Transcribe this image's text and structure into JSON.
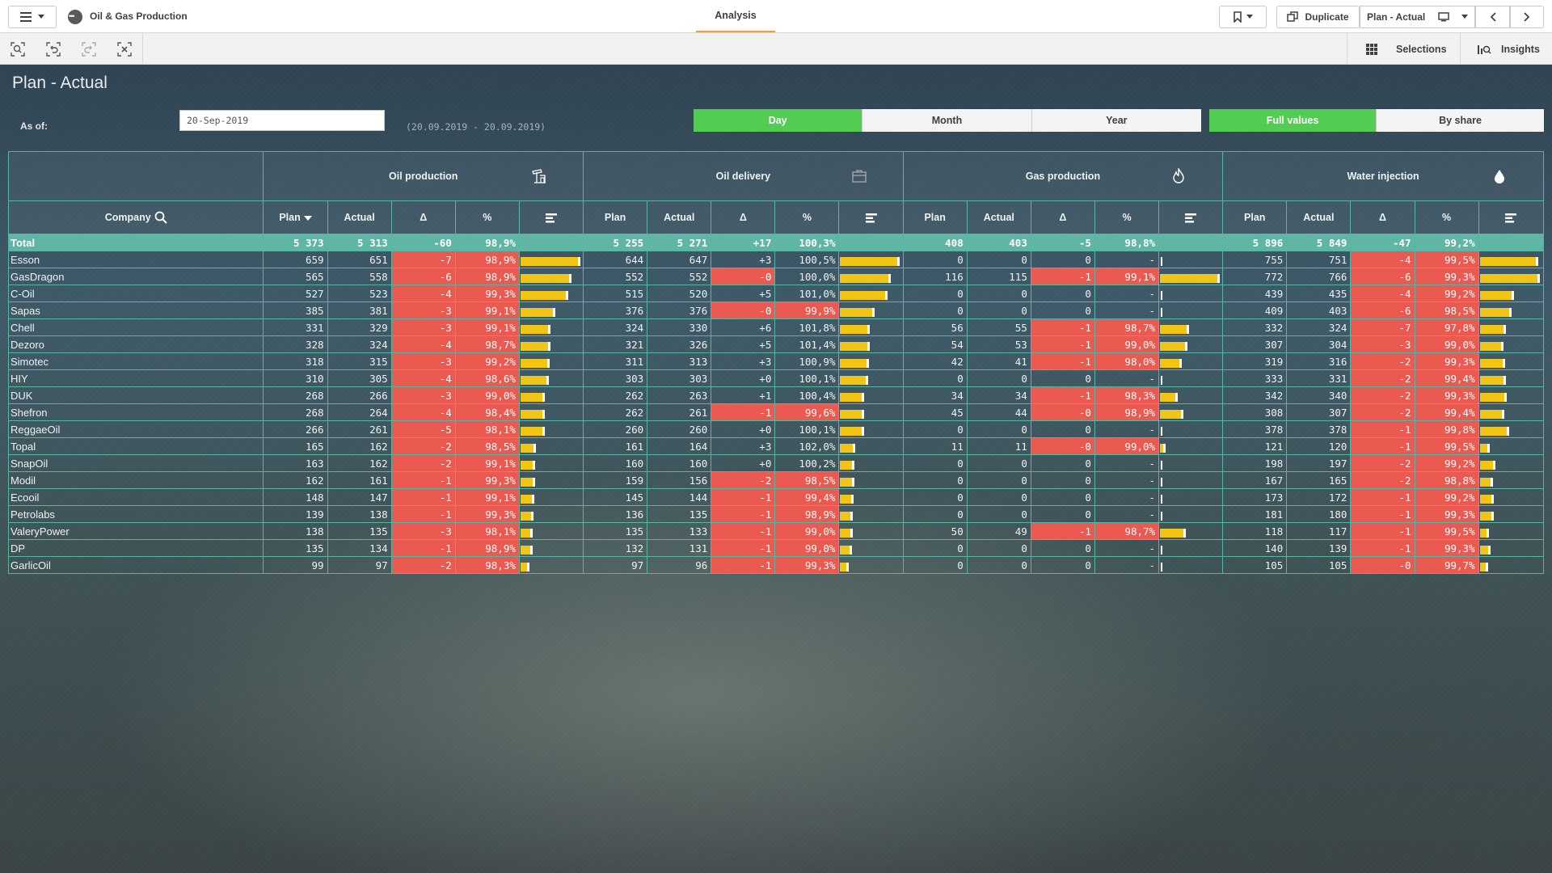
{
  "app": {
    "title": "Oil & Gas Production",
    "tab": "Analysis"
  },
  "header": {
    "duplicate": "Duplicate",
    "sheet": "Plan - Actual"
  },
  "toolbar": {
    "selections": "Selections",
    "insights": "Insights"
  },
  "sheet": {
    "title": "Plan - Actual",
    "as_of_label": "As of:",
    "date_value": "20-Sep-2019",
    "date_range": "(20.09.2019 - 20.09.2019)",
    "period_buttons": [
      {
        "label": "Day",
        "active": true
      },
      {
        "label": "Month",
        "active": false
      },
      {
        "label": "Year",
        "active": false
      }
    ],
    "mode_buttons": [
      {
        "label": "Full values",
        "active": true
      },
      {
        "label": "By share",
        "active": false
      }
    ]
  },
  "table": {
    "company_header": "Company",
    "groups": [
      {
        "label": "Oil production",
        "icon": "oil-pump-icon"
      },
      {
        "label": "Oil delivery",
        "icon": "delivery-icon"
      },
      {
        "label": "Gas production",
        "icon": "flame-icon"
      },
      {
        "label": "Water injection",
        "icon": "water-drop-icon"
      }
    ],
    "columns": [
      "Plan",
      "Actual",
      "Δ",
      "%",
      ""
    ],
    "colors": {
      "negative": "#ea5a50",
      "bar": "#f2c413",
      "total": "#5fb6a4",
      "active": "#52cc52"
    },
    "rows": [
      {
        "company": "Total",
        "total": true,
        "oil_prod": [
          "5 373",
          "5 313",
          "-60",
          "98,9%",
          null
        ],
        "oil_del": [
          "5 255",
          "5 271",
          "+17",
          "100,3%",
          null
        ],
        "gas": [
          "408",
          "403",
          "-5",
          "98,8%",
          null
        ],
        "water": [
          "5 896",
          "5 849",
          "-47",
          "99,2%",
          null
        ]
      },
      {
        "company": "Esson",
        "oil_prod": [
          "659",
          "651",
          "-7",
          "98,9%",
          659
        ],
        "oil_del": [
          "644",
          "647",
          "+3",
          "100,5%",
          644
        ],
        "gas": [
          "0",
          "0",
          "0",
          "-",
          0
        ],
        "water": [
          "755",
          "751",
          "-4",
          "99,5%",
          755
        ]
      },
      {
        "company": "GasDragon",
        "oil_prod": [
          "565",
          "558",
          "-6",
          "98,9%",
          565
        ],
        "oil_del": [
          "552",
          "552",
          "-0",
          "100,0%",
          552
        ],
        "gas": [
          "116",
          "115",
          "-1",
          "99,1%",
          116
        ],
        "water": [
          "772",
          "766",
          "-6",
          "99,3%",
          772
        ]
      },
      {
        "company": "C-Oil",
        "oil_prod": [
          "527",
          "523",
          "-4",
          "99,3%",
          527
        ],
        "oil_del": [
          "515",
          "520",
          "+5",
          "101,0%",
          515
        ],
        "gas": [
          "0",
          "0",
          "0",
          "-",
          0
        ],
        "water": [
          "439",
          "435",
          "-4",
          "99,2%",
          439
        ]
      },
      {
        "company": "Sapas",
        "oil_prod": [
          "385",
          "381",
          "-3",
          "99,1%",
          385
        ],
        "oil_del": [
          "376",
          "376",
          "-0",
          "99,9%",
          376
        ],
        "gas": [
          "0",
          "0",
          "0",
          "-",
          0
        ],
        "water": [
          "409",
          "403",
          "-6",
          "98,5%",
          409
        ]
      },
      {
        "company": "Chell",
        "oil_prod": [
          "331",
          "329",
          "-3",
          "99,1%",
          331
        ],
        "oil_del": [
          "324",
          "330",
          "+6",
          "101,8%",
          324
        ],
        "gas": [
          "56",
          "55",
          "-1",
          "98,7%",
          56
        ],
        "water": [
          "332",
          "324",
          "-7",
          "97,8%",
          332
        ]
      },
      {
        "company": "Dezoro",
        "oil_prod": [
          "328",
          "324",
          "-4",
          "98,7%",
          328
        ],
        "oil_del": [
          "321",
          "326",
          "+5",
          "101,4%",
          321
        ],
        "gas": [
          "54",
          "53",
          "-1",
          "99,0%",
          54
        ],
        "water": [
          "307",
          "304",
          "-3",
          "99,0%",
          307
        ]
      },
      {
        "company": "Simotec",
        "oil_prod": [
          "318",
          "315",
          "-3",
          "99,2%",
          318
        ],
        "oil_del": [
          "311",
          "313",
          "+3",
          "100,9%",
          311
        ],
        "gas": [
          "42",
          "41",
          "-1",
          "98,0%",
          42
        ],
        "water": [
          "319",
          "316",
          "-2",
          "99,3%",
          319
        ]
      },
      {
        "company": "HIY",
        "oil_prod": [
          "310",
          "305",
          "-4",
          "98,6%",
          310
        ],
        "oil_del": [
          "303",
          "303",
          "+0",
          "100,1%",
          303
        ],
        "gas": [
          "0",
          "0",
          "0",
          "-",
          0
        ],
        "water": [
          "333",
          "331",
          "-2",
          "99,4%",
          333
        ]
      },
      {
        "company": "DUK",
        "oil_prod": [
          "268",
          "266",
          "-3",
          "99,0%",
          268
        ],
        "oil_del": [
          "262",
          "263",
          "+1",
          "100,4%",
          262
        ],
        "gas": [
          "34",
          "34",
          "-1",
          "98,3%",
          34
        ],
        "water": [
          "342",
          "340",
          "-2",
          "99,3%",
          342
        ]
      },
      {
        "company": "Shefron",
        "oil_prod": [
          "268",
          "264",
          "-4",
          "98,4%",
          268
        ],
        "oil_del": [
          "262",
          "261",
          "-1",
          "99,6%",
          262
        ],
        "gas": [
          "45",
          "44",
          "-0",
          "98,9%",
          45
        ],
        "water": [
          "308",
          "307",
          "-2",
          "99,4%",
          308
        ]
      },
      {
        "company": "ReggaeOil",
        "oil_prod": [
          "266",
          "261",
          "-5",
          "98,1%",
          266
        ],
        "oil_del": [
          "260",
          "260",
          "+0",
          "100,1%",
          260
        ],
        "gas": [
          "0",
          "0",
          "0",
          "-",
          0
        ],
        "water": [
          "378",
          "378",
          "-1",
          "99,8%",
          378
        ]
      },
      {
        "company": "Topal",
        "oil_prod": [
          "165",
          "162",
          "-2",
          "98,5%",
          165
        ],
        "oil_del": [
          "161",
          "164",
          "+3",
          "102,0%",
          161
        ],
        "gas": [
          "11",
          "11",
          "-0",
          "99,0%",
          11
        ],
        "water": [
          "121",
          "120",
          "-1",
          "99,5%",
          121
        ]
      },
      {
        "company": "SnapOil",
        "oil_prod": [
          "163",
          "162",
          "-2",
          "99,1%",
          163
        ],
        "oil_del": [
          "160",
          "160",
          "+0",
          "100,2%",
          160
        ],
        "gas": [
          "0",
          "0",
          "0",
          "-",
          0
        ],
        "water": [
          "198",
          "197",
          "-2",
          "99,2%",
          198
        ]
      },
      {
        "company": "Modil",
        "oil_prod": [
          "162",
          "161",
          "-1",
          "99,3%",
          162
        ],
        "oil_del": [
          "159",
          "156",
          "-2",
          "98,5%",
          159
        ],
        "gas": [
          "0",
          "0",
          "0",
          "-",
          0
        ],
        "water": [
          "167",
          "165",
          "-2",
          "98,8%",
          167
        ]
      },
      {
        "company": "Ecooil",
        "oil_prod": [
          "148",
          "147",
          "-1",
          "99,1%",
          148
        ],
        "oil_del": [
          "145",
          "144",
          "-1",
          "99,4%",
          145
        ],
        "gas": [
          "0",
          "0",
          "0",
          "-",
          0
        ],
        "water": [
          "173",
          "172",
          "-1",
          "99,2%",
          173
        ]
      },
      {
        "company": "Petrolabs",
        "oil_prod": [
          "139",
          "138",
          "-1",
          "99,3%",
          139
        ],
        "oil_del": [
          "136",
          "135",
          "-1",
          "98,9%",
          136
        ],
        "gas": [
          "0",
          "0",
          "0",
          "-",
          0
        ],
        "water": [
          "181",
          "180",
          "-1",
          "99,3%",
          181
        ]
      },
      {
        "company": "ValeryPower",
        "oil_prod": [
          "138",
          "135",
          "-3",
          "98,1%",
          138
        ],
        "oil_del": [
          "135",
          "133",
          "-1",
          "99,0%",
          135
        ],
        "gas": [
          "50",
          "49",
          "-1",
          "98,7%",
          50
        ],
        "water": [
          "118",
          "117",
          "-1",
          "99,5%",
          118
        ]
      },
      {
        "company": "DP",
        "oil_prod": [
          "135",
          "134",
          "-1",
          "98,9%",
          135
        ],
        "oil_del": [
          "132",
          "131",
          "-1",
          "99,0%",
          132
        ],
        "gas": [
          "0",
          "0",
          "0",
          "-",
          0
        ],
        "water": [
          "140",
          "139",
          "-1",
          "99,3%",
          140
        ]
      },
      {
        "company": "GarlicOil",
        "oil_prod": [
          "99",
          "97",
          "-2",
          "98,3%",
          99
        ],
        "oil_del": [
          "97",
          "96",
          "-1",
          "99,3%",
          97
        ],
        "gas": [
          "0",
          "0",
          "0",
          "-",
          0
        ],
        "water": [
          "105",
          "105",
          "-0",
          "99,7%",
          105
        ]
      }
    ]
  }
}
